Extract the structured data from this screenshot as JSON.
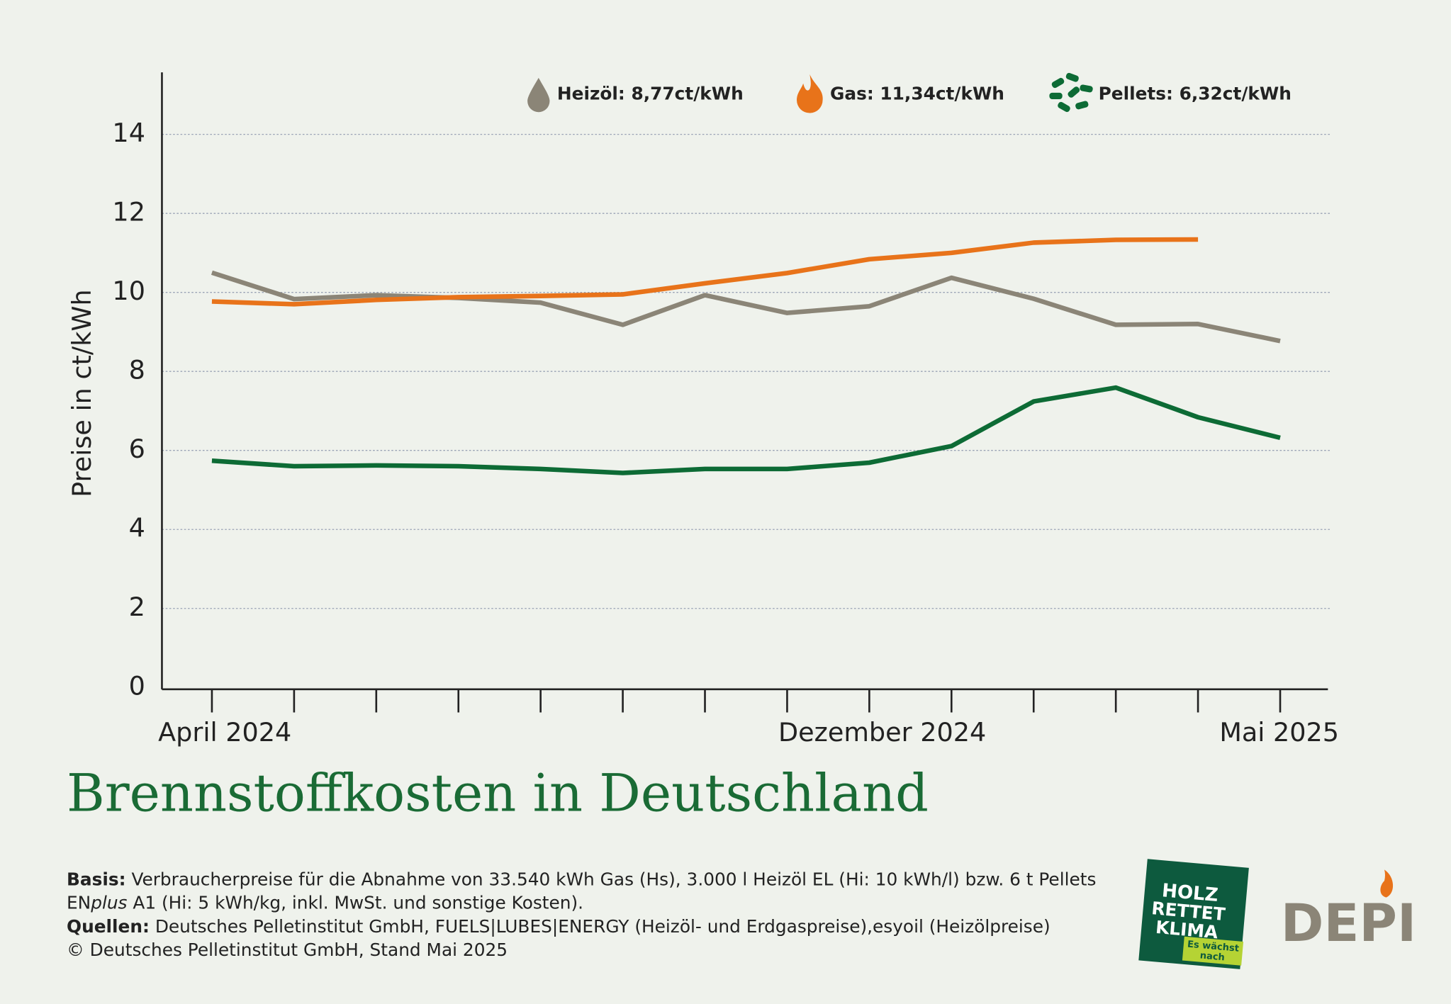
{
  "chart_data": {
    "type": "line",
    "title": "Brennstoffkosten in Deutschland",
    "y_label": "Preise in ct/kWh",
    "categories": [
      "April 2024",
      null,
      null,
      null,
      null,
      null,
      null,
      null,
      "Dezember 2024",
      null,
      null,
      null,
      null,
      "Mai 2025"
    ],
    "series": [
      {
        "name": "Heizöl: 8,77ct/kWh",
        "color": "#8b8577",
        "values": [
          10.5,
          9.83,
          9.93,
          9.86,
          9.74,
          9.18,
          9.93,
          9.48,
          9.65,
          10.37,
          9.84,
          9.18,
          9.2,
          8.77
        ]
      },
      {
        "name": "Gas: 11,34ct/kWh",
        "color": "#e8731a",
        "values": [
          9.77,
          9.7,
          9.81,
          9.88,
          9.91,
          9.95,
          10.23,
          10.49,
          10.84,
          11.0,
          11.26,
          11.33,
          11.34,
          null
        ]
      },
      {
        "name": "Pellets: 6,32ct/kWh",
        "color": "#0d6b35",
        "values": [
          5.74,
          5.6,
          5.62,
          5.6,
          5.53,
          5.43,
          5.53,
          5.53,
          5.69,
          6.11,
          7.24,
          7.59,
          6.84,
          6.32
        ]
      }
    ],
    "ylim": [
      0,
      15.5
    ],
    "yticks": [
      0,
      2,
      4,
      6,
      8,
      10,
      12,
      14
    ],
    "grid": true
  },
  "footer": {
    "basis_label": "Basis:",
    "basis_text": " Verbraucherpreise für die Abnahme von 33.540 kWh Gas (Hs), 3.000 l Heizöl EL (Hi: 10 kWh/l) bzw. 6 t Pellets",
    "line2_a": "EN",
    "line2_italic": "plus",
    "line2_b": " A1 (Hi: 5 kWh/kg, inkl. MwSt. und sonstige Kosten).",
    "sources_label": "Quellen:",
    "sources_text": " Deutsches Pelletinstitut GmbH, FUELS|LUBES|ENERGY (Heizöl- und Erdgaspreise),esyoil (Heizölpreise)",
    "copyright": "© Deutsches Pelletinstitut GmbH, Stand Mai 2025"
  },
  "logos": {
    "holz_1": "HOLZ",
    "holz_2": "RETTET",
    "holz_3": "KLIMA",
    "badge_1": "Es wächst",
    "badge_2": "nach",
    "depi": "DEPI"
  }
}
